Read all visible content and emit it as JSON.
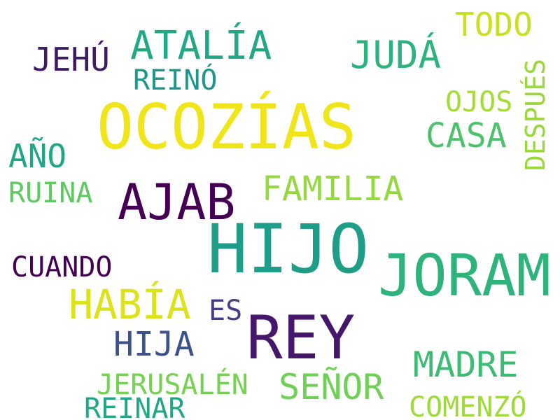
{
  "words": [
    {
      "text": "OCOZÍAS",
      "color": "#f0e51a"
    },
    {
      "text": "HIJO",
      "color": "#1e9d89"
    },
    {
      "text": "JORAM",
      "color": "#2eb37c"
    },
    {
      "text": "REY",
      "color": "#46166b"
    },
    {
      "text": "AJAB",
      "color": "#440154"
    },
    {
      "text": "ATALÍA",
      "color": "#22a884"
    },
    {
      "text": "JUDÁ",
      "color": "#2db37d"
    },
    {
      "text": "TODO",
      "color": "#c8df22"
    },
    {
      "text": "JEHÚ",
      "color": "#3e1b63"
    },
    {
      "text": "REINÓ",
      "color": "#1f968b"
    },
    {
      "text": "OJOS",
      "color": "#a5db36"
    },
    {
      "text": "DESPUÉS",
      "color": "#9ad83a"
    },
    {
      "text": "CASA",
      "color": "#4dc16b"
    },
    {
      "text": "AÑO",
      "color": "#21a685"
    },
    {
      "text": "FAMILIA",
      "color": "#95d840"
    },
    {
      "text": "RUINA",
      "color": "#5ec962"
    },
    {
      "text": "CUANDO",
      "color": "#440154"
    },
    {
      "text": "HABÍA",
      "color": "#dce319"
    },
    {
      "text": "ES",
      "color": "#433e85"
    },
    {
      "text": "HIJA",
      "color": "#3b528b"
    },
    {
      "text": "MADRE",
      "color": "#3cbb75"
    },
    {
      "text": "SEÑOR",
      "color": "#70cf57"
    },
    {
      "text": "JERUSALÉN",
      "color": "#75d054"
    },
    {
      "text": "REINAR",
      "color": "#22a785"
    },
    {
      "text": "COMENZÓ",
      "color": "#9fda3a"
    }
  ]
}
